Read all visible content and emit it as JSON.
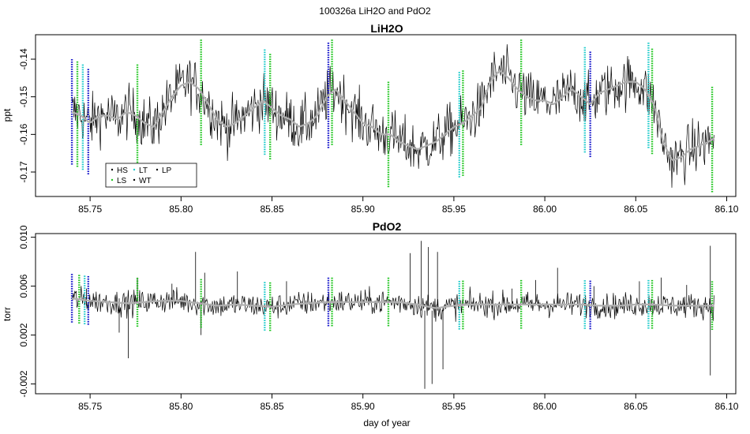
{
  "figure": {
    "suptitle": "100326a   LiH2O and PdO2"
  },
  "colors": {
    "trace": "#000000",
    "smooth": "#b0b0b0",
    "HS": "#000000",
    "LS": "#1fc61f",
    "LT": "#22cccc",
    "WT": "#000000",
    "LP": "#000000",
    "blue_marker": "#1a1acc"
  },
  "chart_data": [
    {
      "type": "line",
      "title": "LiH2O",
      "xlabel": "",
      "ylabel": "ppt",
      "xlim": [
        85.72,
        86.105
      ],
      "ylim": [
        -0.1765,
        -0.1335
      ],
      "xticks": [
        85.75,
        85.8,
        85.85,
        85.9,
        85.95,
        86.0,
        86.05,
        86.1
      ],
      "xtick_labels": [
        "85.75",
        "85.80",
        "85.85",
        "85.90",
        "85.95",
        "86.00",
        "86.05",
        "86.10"
      ],
      "yticks": [
        -0.17,
        -0.16,
        -0.15,
        -0.14
      ],
      "ytick_labels": [
        "-0.17",
        "-0.16",
        "-0.15",
        "-0.14"
      ],
      "legend": {
        "placement": "bottom-left",
        "entries": [
          {
            "name": "HS",
            "color": "#000000"
          },
          {
            "name": "LS",
            "color": "#1fc61f"
          },
          {
            "name": "LT",
            "color": "#22cccc"
          },
          {
            "name": "WT",
            "color": "#000000"
          },
          {
            "name": "LP",
            "color": "#000000"
          }
        ]
      },
      "series": [
        {
          "role": "trend",
          "noise": 0.0035,
          "x": [
            85.74,
            85.745,
            85.75,
            85.755,
            85.76,
            85.765,
            85.77,
            85.775,
            85.78,
            85.785,
            85.79,
            85.795,
            85.8,
            85.805,
            85.81,
            85.815,
            85.82,
            85.825,
            85.83,
            85.835,
            85.84,
            85.845,
            85.85,
            85.855,
            85.86,
            85.865,
            85.87,
            85.875,
            85.88,
            85.885,
            85.89,
            85.895,
            85.9,
            85.905,
            85.91,
            85.915,
            85.92,
            85.925,
            85.93,
            85.935,
            85.94,
            85.945,
            85.95,
            85.955,
            85.96,
            85.965,
            85.97,
            85.975,
            85.98,
            85.985,
            85.99,
            85.995,
            86.0,
            86.005,
            86.01,
            86.015,
            86.02,
            86.025,
            86.03,
            86.035,
            86.04,
            86.045,
            86.05,
            86.055,
            86.06,
            86.065,
            86.07,
            86.075,
            86.08,
            86.085,
            86.09,
            86.093
          ],
          "y": [
            -0.154,
            -0.155,
            -0.157,
            -0.155,
            -0.155,
            -0.156,
            -0.154,
            -0.155,
            -0.157,
            -0.158,
            -0.154,
            -0.15,
            -0.147,
            -0.146,
            -0.148,
            -0.152,
            -0.156,
            -0.158,
            -0.157,
            -0.155,
            -0.153,
            -0.151,
            -0.153,
            -0.155,
            -0.156,
            -0.158,
            -0.157,
            -0.155,
            -0.15,
            -0.148,
            -0.151,
            -0.154,
            -0.157,
            -0.158,
            -0.16,
            -0.16,
            -0.162,
            -0.163,
            -0.164,
            -0.163,
            -0.162,
            -0.16,
            -0.158,
            -0.157,
            -0.155,
            -0.153,
            -0.146,
            -0.143,
            -0.145,
            -0.148,
            -0.15,
            -0.151,
            -0.151,
            -0.152,
            -0.15,
            -0.148,
            -0.15,
            -0.152,
            -0.149,
            -0.148,
            -0.147,
            -0.146,
            -0.146,
            -0.148,
            -0.152,
            -0.162,
            -0.167,
            -0.166,
            -0.164,
            -0.163,
            -0.162,
            -0.161
          ]
        }
      ],
      "markers": [
        {
          "x": 85.74,
          "color": "#1a1acc"
        },
        {
          "x": 85.743,
          "color": "#1fc61f"
        },
        {
          "x": 85.746,
          "color": "#22cccc"
        },
        {
          "x": 85.749,
          "color": "#1a1acc"
        },
        {
          "x": 85.776,
          "color": "#1fc61f"
        },
        {
          "x": 85.811,
          "color": "#1fc61f"
        },
        {
          "x": 85.846,
          "color": "#22cccc"
        },
        {
          "x": 85.849,
          "color": "#1fc61f"
        },
        {
          "x": 85.881,
          "color": "#1a1acc"
        },
        {
          "x": 85.883,
          "color": "#1fc61f"
        },
        {
          "x": 85.914,
          "color": "#1fc61f"
        },
        {
          "x": 85.953,
          "color": "#22cccc"
        },
        {
          "x": 85.955,
          "color": "#1fc61f"
        },
        {
          "x": 85.987,
          "color": "#1fc61f"
        },
        {
          "x": 86.022,
          "color": "#22cccc"
        },
        {
          "x": 86.025,
          "color": "#1a1acc"
        },
        {
          "x": 86.057,
          "color": "#22cccc"
        },
        {
          "x": 86.059,
          "color": "#1fc61f"
        },
        {
          "x": 86.092,
          "color": "#1fc61f"
        }
      ]
    },
    {
      "type": "line",
      "title": "PdO2",
      "xlabel": "day of year",
      "ylabel": "torr",
      "xlim": [
        85.72,
        86.105
      ],
      "ylim": [
        -0.0028,
        0.0103
      ],
      "xticks": [
        85.75,
        85.8,
        85.85,
        85.9,
        85.95,
        86.0,
        86.05,
        86.1
      ],
      "xtick_labels": [
        "85.75",
        "85.80",
        "85.85",
        "85.90",
        "85.95",
        "86.00",
        "86.05",
        "86.10"
      ],
      "yticks": [
        -0.002,
        0.002,
        0.006,
        0.01
      ],
      "ytick_labels": [
        "-0.002",
        "0.002",
        "0.006",
        "0.010"
      ],
      "series": [
        {
          "role": "trend",
          "noise": 0.0005,
          "x": [
            85.74,
            85.75,
            85.76,
            85.77,
            85.78,
            85.79,
            85.8,
            85.81,
            85.82,
            85.83,
            85.84,
            85.85,
            85.86,
            85.87,
            85.88,
            85.89,
            85.9,
            85.91,
            85.92,
            85.93,
            85.94,
            85.95,
            85.96,
            85.97,
            85.98,
            85.99,
            86.0,
            86.01,
            86.02,
            86.03,
            86.04,
            86.05,
            86.06,
            86.07,
            86.08,
            86.093
          ],
          "y": [
            0.005,
            0.0048,
            0.0047,
            0.0046,
            0.0047,
            0.0048,
            0.0048,
            0.0046,
            0.0044,
            0.0045,
            0.0044,
            0.0043,
            0.0045,
            0.0046,
            0.0047,
            0.0047,
            0.0047,
            0.0047,
            0.0047,
            0.0045,
            0.0042,
            0.0044,
            0.0045,
            0.0045,
            0.0045,
            0.0045,
            0.0045,
            0.0045,
            0.0045,
            0.0044,
            0.0044,
            0.0045,
            0.0045,
            0.0044,
            0.0044,
            0.0044
          ]
        }
      ],
      "spikes": [
        {
          "x": 85.748,
          "y0": 0.0044,
          "y1": 0.0058
        },
        {
          "x": 85.766,
          "y0": 0.005,
          "y1": 0.0022
        },
        {
          "x": 85.771,
          "y0": 0.0045,
          "y1": 0.0001
        },
        {
          "x": 85.776,
          "y0": 0.0047,
          "y1": 0.0067
        },
        {
          "x": 85.795,
          "y0": 0.0048,
          "y1": 0.0062
        },
        {
          "x": 85.808,
          "y0": 0.0047,
          "y1": 0.0088
        },
        {
          "x": 85.811,
          "y0": 0.0046,
          "y1": 0.002
        },
        {
          "x": 85.813,
          "y0": 0.0046,
          "y1": 0.0071
        },
        {
          "x": 85.831,
          "y0": 0.0044,
          "y1": 0.0072
        },
        {
          "x": 85.858,
          "y0": 0.0044,
          "y1": 0.0064
        },
        {
          "x": 85.926,
          "y0": 0.0047,
          "y1": 0.0087
        },
        {
          "x": 85.932,
          "y0": 0.004,
          "y1": 0.0097
        },
        {
          "x": 85.934,
          "y0": 0.004,
          "y1": -0.0024
        },
        {
          "x": 85.936,
          "y0": 0.004,
          "y1": 0.0092
        },
        {
          "x": 85.938,
          "y0": 0.004,
          "y1": -0.002
        },
        {
          "x": 85.941,
          "y0": 0.004,
          "y1": 0.0088
        },
        {
          "x": 85.944,
          "y0": 0.0042,
          "y1": -0.0008
        },
        {
          "x": 85.982,
          "y0": 0.0045,
          "y1": 0.0058
        },
        {
          "x": 85.995,
          "y0": 0.0045,
          "y1": 0.0065
        },
        {
          "x": 86.007,
          "y0": 0.0045,
          "y1": 0.0075
        },
        {
          "x": 86.027,
          "y0": 0.0045,
          "y1": 0.006
        },
        {
          "x": 86.052,
          "y0": 0.0045,
          "y1": 0.0064
        },
        {
          "x": 86.064,
          "y0": 0.0044,
          "y1": 0.0067
        },
        {
          "x": 86.078,
          "y0": 0.0044,
          "y1": 0.0061
        },
        {
          "x": 86.091,
          "y0": 0.0044,
          "y1": 0.0093
        },
        {
          "x": 86.091,
          "y0": 0.0044,
          "y1": -0.0013
        }
      ],
      "markers": [
        {
          "x": 85.74,
          "color": "#1a1acc"
        },
        {
          "x": 85.744,
          "color": "#1fc61f"
        },
        {
          "x": 85.747,
          "color": "#22cccc"
        },
        {
          "x": 85.749,
          "color": "#1a1acc"
        },
        {
          "x": 85.776,
          "color": "#1fc61f"
        },
        {
          "x": 85.811,
          "color": "#1fc61f"
        },
        {
          "x": 85.846,
          "color": "#22cccc"
        },
        {
          "x": 85.849,
          "color": "#1fc61f"
        },
        {
          "x": 85.881,
          "color": "#1a1acc"
        },
        {
          "x": 85.883,
          "color": "#1fc61f"
        },
        {
          "x": 85.914,
          "color": "#1fc61f"
        },
        {
          "x": 85.953,
          "color": "#22cccc"
        },
        {
          "x": 85.955,
          "color": "#1fc61f"
        },
        {
          "x": 85.987,
          "color": "#1fc61f"
        },
        {
          "x": 86.022,
          "color": "#22cccc"
        },
        {
          "x": 86.025,
          "color": "#1a1acc"
        },
        {
          "x": 86.057,
          "color": "#22cccc"
        },
        {
          "x": 86.059,
          "color": "#1fc61f"
        },
        {
          "x": 86.092,
          "color": "#1fc61f"
        }
      ]
    }
  ]
}
